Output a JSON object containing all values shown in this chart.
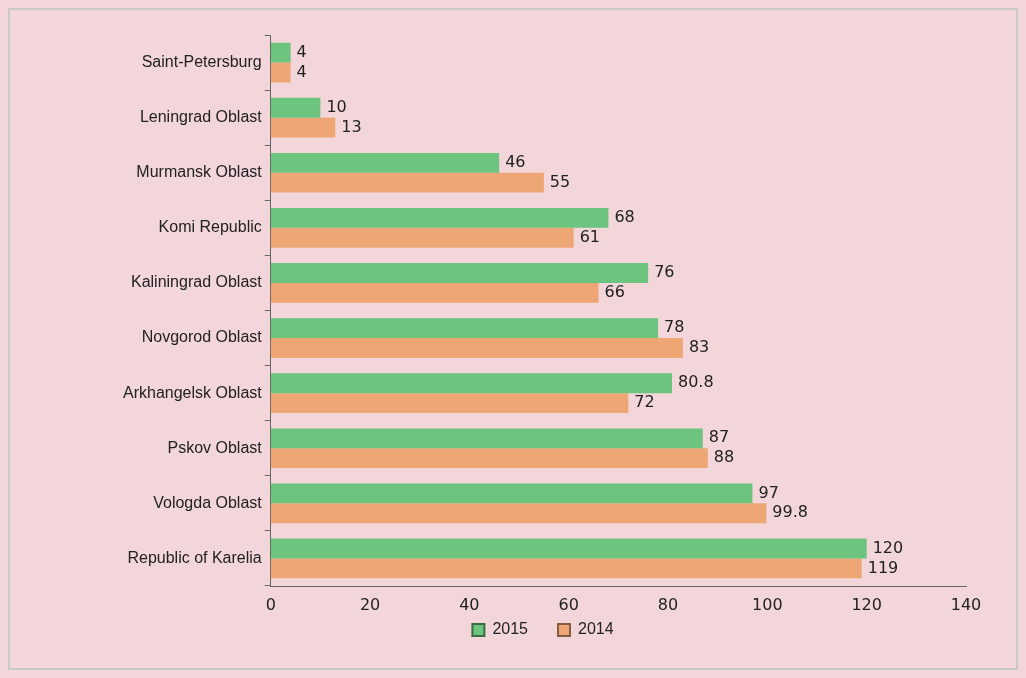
{
  "chart_data": {
    "type": "bar",
    "orientation": "horizontal",
    "categories": [
      "Saint-Petersburg",
      "Leningrad Oblast",
      "Murmansk Oblast",
      "Komi Republic",
      "Kaliningrad Oblast",
      "Novgorod Oblast",
      "Arkhangelsk Oblast",
      "Pskov Oblast",
      "Vologda Oblast",
      "Republic of Karelia"
    ],
    "series": [
      {
        "name": "2015",
        "color": "#6cc47e",
        "values": [
          4,
          10,
          46,
          68,
          76,
          78,
          80.8,
          87,
          97,
          120
        ]
      },
      {
        "name": "2014",
        "color": "#eea774",
        "values": [
          4,
          13,
          55,
          61,
          66,
          83,
          72,
          88,
          99.8,
          119
        ]
      }
    ],
    "xlim": [
      0,
      140
    ],
    "xticks": [
      0,
      20,
      40,
      60,
      80,
      100,
      120,
      140
    ],
    "grid": false,
    "legend": "bottom",
    "data_labels": true
  }
}
